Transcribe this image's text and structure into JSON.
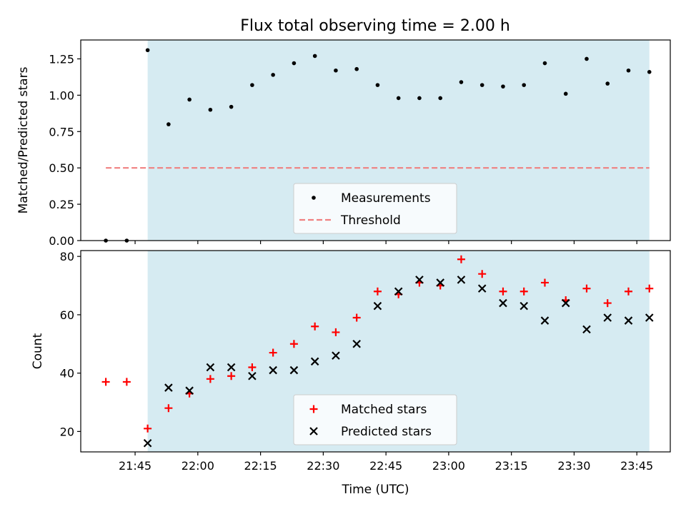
{
  "title": "Flux total observing time = 2.00 h",
  "colors": {
    "observing_span": "#add8e6",
    "measurements": "#000000",
    "threshold": "#f08080",
    "matched": "#ff0000",
    "predicted": "#000000"
  },
  "chart_data": [
    {
      "type": "scatter",
      "ylabel": "Matched/Predicted stars",
      "xlim": [
        "21:32",
        "23:53"
      ],
      "ylim": [
        0,
        1.38
      ],
      "x_ticks": [
        "21:45",
        "22:00",
        "22:15",
        "22:30",
        "22:45",
        "23:00",
        "23:15",
        "23:30",
        "23:45"
      ],
      "y_ticks": [
        "0.00",
        "0.25",
        "0.50",
        "0.75",
        "1.00",
        "1.25"
      ],
      "observing_span": [
        "21:48",
        "23:48"
      ],
      "legend_position": "bottom-center",
      "series": [
        {
          "name": "Measurements",
          "marker": "dot",
          "x": [
            "21:38",
            "21:43",
            "21:48",
            "21:53",
            "21:58",
            "22:03",
            "22:08",
            "22:13",
            "22:18",
            "22:23",
            "22:28",
            "22:33",
            "22:38",
            "22:43",
            "22:48",
            "22:53",
            "22:58",
            "23:03",
            "23:08",
            "23:13",
            "23:18",
            "23:23",
            "23:28",
            "23:33",
            "23:38",
            "23:43",
            "23:48"
          ],
          "values": [
            0.0,
            0.0,
            1.31,
            0.8,
            0.97,
            0.9,
            0.92,
            1.07,
            1.14,
            1.22,
            1.27,
            1.17,
            1.18,
            1.07,
            0.98,
            0.98,
            0.98,
            1.09,
            1.07,
            1.06,
            1.07,
            1.22,
            1.01,
            1.25,
            1.08,
            1.17,
            1.16
          ]
        },
        {
          "name": "Threshold",
          "marker": "dashed-line",
          "x": [
            "21:38",
            "23:48"
          ],
          "values": [
            0.5,
            0.5
          ]
        }
      ]
    },
    {
      "type": "scatter",
      "xlabel": "Time (UTC)",
      "ylabel": "Count",
      "xlim": [
        "21:32",
        "23:53"
      ],
      "ylim": [
        13,
        82
      ],
      "x_ticks": [
        "21:45",
        "22:00",
        "22:15",
        "22:30",
        "22:45",
        "23:00",
        "23:15",
        "23:30",
        "23:45"
      ],
      "y_ticks": [
        "20",
        "40",
        "60",
        "80"
      ],
      "observing_span": [
        "21:48",
        "23:48"
      ],
      "legend_position": "bottom-center",
      "series": [
        {
          "name": "Matched stars",
          "marker": "plus",
          "x": [
            "21:38",
            "21:43",
            "21:48",
            "21:53",
            "21:58",
            "22:03",
            "22:08",
            "22:13",
            "22:18",
            "22:23",
            "22:28",
            "22:33",
            "22:38",
            "22:43",
            "22:48",
            "22:53",
            "22:58",
            "23:03",
            "23:08",
            "23:13",
            "23:18",
            "23:23",
            "23:28",
            "23:33",
            "23:38",
            "23:43",
            "23:48"
          ],
          "values": [
            37,
            37,
            21,
            28,
            33,
            38,
            39,
            42,
            47,
            50,
            56,
            54,
            59,
            68,
            67,
            71,
            70,
            79,
            74,
            68,
            68,
            71,
            65,
            69,
            64,
            68,
            69
          ]
        },
        {
          "name": "Predicted stars",
          "marker": "x",
          "x": [
            "21:48",
            "21:53",
            "21:58",
            "22:03",
            "22:08",
            "22:13",
            "22:18",
            "22:23",
            "22:28",
            "22:33",
            "22:38",
            "22:43",
            "22:48",
            "22:53",
            "22:58",
            "23:03",
            "23:08",
            "23:13",
            "23:18",
            "23:23",
            "23:28",
            "23:33",
            "23:38",
            "23:43",
            "23:48"
          ],
          "values": [
            16,
            35,
            34,
            42,
            42,
            39,
            41,
            41,
            44,
            46,
            50,
            63,
            68,
            72,
            71,
            72,
            69,
            64,
            63,
            58,
            64,
            55,
            59,
            58,
            59
          ]
        }
      ]
    }
  ]
}
